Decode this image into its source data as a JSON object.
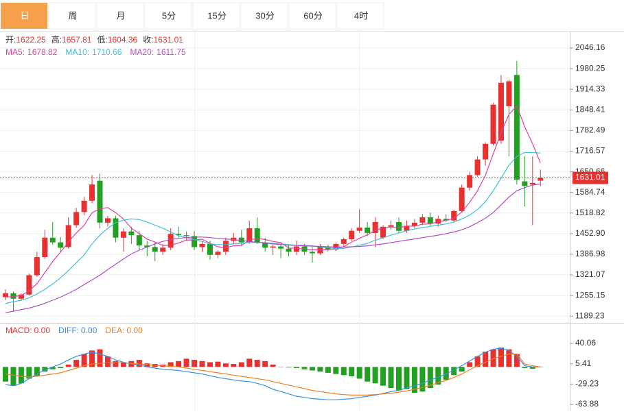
{
  "tabs": [
    "日",
    "周",
    "月",
    "5分",
    "15分",
    "30分",
    "60分",
    "4时"
  ],
  "selected_tab": 0,
  "chart_data": [
    {
      "type": "candlestick",
      "up_color": "#e8312f",
      "down_color": "#22a022",
      "grid": true,
      "ohlc_labels": [
        "开:",
        "高:",
        "低:",
        "收:"
      ],
      "ylim": [
        1170,
        2101
      ],
      "yticks": [
        2046.16,
        1980.25,
        1914.33,
        1848.41,
        1782.49,
        1716.57,
        1650.66,
        1584.74,
        1518.82,
        {
          "value": 1452.9,
          "label": "1452.90"
        },
        1386.98,
        1321.07,
        1255.15,
        1189.23
      ],
      "open": [
        1250,
        1262,
        1245,
        1258,
        1320,
        1378,
        1440,
        1425,
        1410,
        1480,
        1522,
        1558,
        1622,
        1488,
        1502,
        1440,
        1460,
        1448,
        1415,
        1410,
        1395,
        1408,
        1452,
        1448,
        1445,
        1410,
        1420,
        1385,
        1395,
        1430,
        1440,
        1425,
        1470,
        1425,
        1408,
        1412,
        1405,
        1395,
        1412,
        1395,
        1390,
        1410,
        1402,
        1420,
        1435,
        1462,
        1472,
        1455,
        1440,
        1475,
        1490,
        1462,
        1478,
        1488,
        1505,
        1485,
        1500,
        1495,
        1525,
        1600,
        1640,
        1690,
        1740,
        1750,
        1860,
        1960,
        1620,
        1610,
        1622.25
      ],
      "high": [
        1275,
        1268,
        1262,
        1325,
        1395,
        1465,
        1490,
        1442,
        1505,
        1535,
        1570,
        1640,
        1645,
        1510,
        1510,
        1470,
        1475,
        1462,
        1430,
        1425,
        1420,
        1470,
        1475,
        1460,
        1460,
        1430,
        1430,
        1400,
        1440,
        1455,
        1465,
        1495,
        1505,
        1440,
        1418,
        1420,
        1418,
        1430,
        1420,
        1410,
        1420,
        1418,
        1425,
        1440,
        1470,
        1530,
        1490,
        1505,
        1480,
        1495,
        1505,
        1495,
        1500,
        1515,
        1520,
        1510,
        1515,
        1530,
        1610,
        1650,
        1700,
        1745,
        1870,
        1960,
        1945,
        2005,
        1700,
        1700,
        1657.81
      ],
      "low": [
        1240,
        1205,
        1238,
        1255,
        1315,
        1372,
        1418,
        1395,
        1405,
        1472,
        1512,
        1550,
        1470,
        1475,
        1425,
        1395,
        1420,
        1400,
        1380,
        1365,
        1385,
        1400,
        1440,
        1430,
        1400,
        1395,
        1370,
        1375,
        1385,
        1420,
        1415,
        1420,
        1420,
        1395,
        1385,
        1375,
        1380,
        1385,
        1385,
        1360,
        1385,
        1395,
        1398,
        1410,
        1430,
        1455,
        1445,
        1410,
        1435,
        1465,
        1455,
        1455,
        1470,
        1480,
        1478,
        1475,
        1490,
        1490,
        1520,
        1590,
        1635,
        1670,
        1735,
        1740,
        1700,
        1610,
        1540,
        1480,
        1604.36
      ],
      "close": [
        1262,
        1245,
        1258,
        1320,
        1378,
        1440,
        1425,
        1408,
        1480,
        1522,
        1558,
        1610,
        1488,
        1502,
        1440,
        1460,
        1448,
        1415,
        1410,
        1395,
        1408,
        1452,
        1448,
        1445,
        1410,
        1420,
        1385,
        1395,
        1430,
        1440,
        1425,
        1470,
        1425,
        1408,
        1412,
        1405,
        1395,
        1412,
        1395,
        1390,
        1410,
        1402,
        1420,
        1435,
        1462,
        1472,
        1455,
        1490,
        1475,
        1480,
        1462,
        1478,
        1488,
        1505,
        1485,
        1500,
        1495,
        1525,
        1600,
        1640,
        1690,
        1740,
        1865,
        1935,
        1940,
        1625,
        1605,
        1615,
        1631.01
      ],
      "series": [
        {
          "name": "MA5:",
          "color": "#e0409a",
          "values": [
            1250,
            1252,
            1255,
            1270,
            1293,
            1328,
            1364,
            1394,
            1426,
            1455,
            1479,
            1520,
            1532,
            1536,
            1520,
            1500,
            1470,
            1453,
            1435,
            1426,
            1415,
            1416,
            1423,
            1432,
            1433,
            1435,
            1422,
            1411,
            1408,
            1414,
            1415,
            1432,
            1438,
            1434,
            1428,
            1424,
            1407,
            1406,
            1404,
            1401,
            1402,
            1402,
            1404,
            1411,
            1426,
            1438,
            1449,
            1463,
            1471,
            1474,
            1472,
            1477,
            1477,
            1483,
            1484,
            1491,
            1495,
            1502,
            1522,
            1553,
            1590,
            1639,
            1708,
            1776,
            1834,
            1861,
            1794,
            1740,
            1678.82
          ]
        },
        {
          "name": "MA10:",
          "color": "#3cc0d8",
          "values": [
            1230,
            1235,
            1240,
            1248,
            1260,
            1275,
            1292,
            1312,
            1335,
            1360,
            1385,
            1420,
            1448,
            1470,
            1488,
            1496,
            1500,
            1498,
            1490,
            1480,
            1470,
            1458,
            1446,
            1440,
            1434,
            1428,
            1420,
            1418,
            1418,
            1420,
            1422,
            1425,
            1425,
            1424,
            1422,
            1420,
            1418,
            1416,
            1415,
            1414,
            1410,
            1408,
            1406,
            1406,
            1410,
            1416,
            1422,
            1432,
            1440,
            1448,
            1455,
            1462,
            1468,
            1472,
            1476,
            1480,
            1484,
            1490,
            1500,
            1512,
            1530,
            1555,
            1590,
            1630,
            1672,
            1700,
            1712,
            1712,
            1710.66
          ]
        },
        {
          "name": "MA20:",
          "color": "#b04cc4",
          "values": [
            1200,
            1205,
            1210,
            1215,
            1222,
            1230,
            1240,
            1250,
            1262,
            1275,
            1290,
            1305,
            1320,
            1338,
            1355,
            1372,
            1388,
            1400,
            1410,
            1420,
            1428,
            1434,
            1438,
            1440,
            1442,
            1442,
            1440,
            1438,
            1436,
            1434,
            1430,
            1428,
            1425,
            1423,
            1420,
            1418,
            1416,
            1415,
            1414,
            1413,
            1412,
            1411,
            1410,
            1410,
            1411,
            1412,
            1414,
            1417,
            1420,
            1424,
            1428,
            1432,
            1436,
            1440,
            1444,
            1448,
            1453,
            1458,
            1465,
            1475,
            1488,
            1502,
            1520,
            1545,
            1570,
            1590,
            1600,
            1608,
            1611.75
          ]
        }
      ]
    },
    {
      "type": "macd",
      "up_color": "#e8312f",
      "down_color": "#22a022",
      "ylim": [
        -73.2,
        72.8
      ],
      "yticks": [
        40.06,
        5.41,
        -29.23,
        -63.88
      ],
      "legend": [
        {
          "name": "MACD:",
          "value": 0,
          "value_label": "0.00",
          "color": "#e8312f"
        },
        {
          "name": "DIFF:",
          "value": 0,
          "value_label": "0.00",
          "color": "#3a8ee6"
        },
        {
          "name": "DEA:",
          "value": 0,
          "value_label": "0.00",
          "color": "#f08020"
        }
      ],
      "values": [
        -25,
        -32,
        -28,
        -20,
        -15,
        -8,
        -4,
        -2,
        4,
        12,
        22,
        28,
        30,
        18,
        10,
        8,
        10,
        12,
        6,
        5,
        4,
        8,
        10,
        14,
        12,
        10,
        8,
        9,
        6,
        5,
        8,
        14,
        12,
        10,
        4,
        0,
        -1,
        -2,
        -4,
        -6,
        -8,
        -10,
        -12,
        -14,
        -16,
        -20,
        -25,
        -28,
        -32,
        -36,
        -40,
        -38,
        -44,
        -42,
        -36,
        -30,
        -22,
        -14,
        -8,
        8,
        18,
        26,
        30,
        33,
        30,
        22,
        -2,
        -3,
        0
      ],
      "series": [
        {
          "name": "DIFF",
          "color": "#3a8ee6",
          "values": [
            -30,
            -32,
            -28,
            -20,
            -12,
            -5,
            0,
            5,
            12,
            18,
            22,
            25,
            22,
            18,
            12,
            8,
            5,
            3,
            0,
            -2,
            -4,
            -5,
            -6,
            -8,
            -10,
            -12,
            -15,
            -18,
            -20,
            -22,
            -24,
            -25,
            -28,
            -32,
            -38,
            -42,
            -46,
            -50,
            -52,
            -54,
            -55,
            -56,
            -56,
            -55,
            -54,
            -52,
            -50,
            -48,
            -45,
            -42,
            -40,
            -36,
            -32,
            -28,
            -22,
            -18,
            -12,
            -5,
            2,
            10,
            18,
            25,
            30,
            32,
            28,
            18,
            2,
            0,
            0
          ]
        },
        {
          "name": "DEA",
          "color": "#f08020",
          "values": [
            -12,
            -14,
            -16,
            -17,
            -16,
            -14,
            -12,
            -10,
            -6,
            -2,
            2,
            5,
            6,
            7,
            7,
            7,
            6,
            5,
            4,
            3,
            2,
            1,
            0,
            -2,
            -4,
            -6,
            -8,
            -10,
            -12,
            -14,
            -16,
            -18,
            -20,
            -22,
            -25,
            -28,
            -31,
            -34,
            -37,
            -40,
            -42,
            -44,
            -46,
            -47,
            -48,
            -48,
            -48,
            -47,
            -46,
            -45,
            -43,
            -41,
            -38,
            -35,
            -31,
            -27,
            -23,
            -18,
            -12,
            -5,
            2,
            8,
            14,
            18,
            22,
            22,
            5,
            2,
            0
          ]
        }
      ]
    }
  ]
}
